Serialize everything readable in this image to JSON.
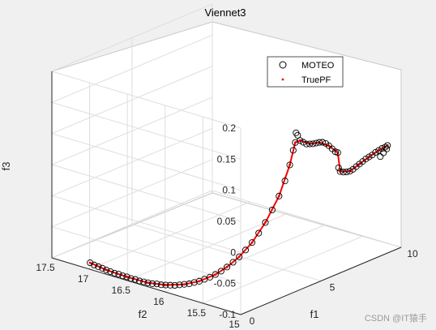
{
  "chart_data": {
    "type": "scatter",
    "title": "Viennet3",
    "xlabel": "f1",
    "ylabel": "f2",
    "zlabel": "f3",
    "xlim": [
      0,
      10
    ],
    "ylim": [
      15,
      17.5
    ],
    "zlim": [
      -0.1,
      0.2
    ],
    "x_ticks": [
      "0",
      "5",
      "10"
    ],
    "y_ticks": [
      "15",
      "15.5",
      "16",
      "16.5",
      "17",
      "17.5"
    ],
    "z_ticks": [
      "-0.1",
      "-0.05",
      "0",
      "0.05",
      "0.1",
      "0.15",
      "0.2"
    ],
    "grid": true,
    "legend": {
      "placement": "top-right",
      "entries": [
        {
          "name": "MOTEO",
          "marker": "circle-open",
          "color": "#000000"
        },
        {
          "name": "TruePF",
          "marker": "dot",
          "color": "#ff0000"
        }
      ]
    },
    "series": [
      {
        "name": "MOTEO",
        "points": [
          [
            0.03,
            17.0,
            -0.09
          ],
          [
            0.05,
            16.95,
            -0.092
          ],
          [
            0.07,
            16.9,
            -0.093
          ],
          [
            0.09,
            16.85,
            -0.094
          ],
          [
            0.1,
            16.8,
            -0.095
          ],
          [
            0.12,
            16.75,
            -0.096
          ],
          [
            0.14,
            16.7,
            -0.097
          ],
          [
            0.16,
            16.65,
            -0.097
          ],
          [
            0.18,
            16.6,
            -0.098
          ],
          [
            0.2,
            16.55,
            -0.098
          ],
          [
            0.22,
            16.5,
            -0.099
          ],
          [
            0.25,
            16.45,
            -0.099
          ],
          [
            0.28,
            16.4,
            -0.1
          ],
          [
            0.31,
            16.35,
            -0.1
          ],
          [
            0.34,
            16.3,
            -0.1
          ],
          [
            0.38,
            16.25,
            -0.1
          ],
          [
            0.42,
            16.2,
            -0.099
          ],
          [
            0.46,
            16.15,
            -0.099
          ],
          [
            0.5,
            16.1,
            -0.098
          ],
          [
            0.55,
            16.05,
            -0.097
          ],
          [
            0.6,
            16.0,
            -0.096
          ],
          [
            0.66,
            15.95,
            -0.094
          ],
          [
            0.72,
            15.9,
            -0.092
          ],
          [
            0.79,
            15.85,
            -0.09
          ],
          [
            0.87,
            15.8,
            -0.087
          ],
          [
            0.95,
            15.75,
            -0.084
          ],
          [
            1.04,
            15.7,
            -0.08
          ],
          [
            1.14,
            15.65,
            -0.076
          ],
          [
            1.25,
            15.6,
            -0.071
          ],
          [
            1.37,
            15.55,
            -0.065
          ],
          [
            1.5,
            15.5,
            -0.058
          ],
          [
            1.64,
            15.45,
            -0.05
          ],
          [
            1.79,
            15.4,
            -0.041
          ],
          [
            1.95,
            15.35,
            -0.03
          ],
          [
            2.12,
            15.3,
            -0.018
          ],
          [
            2.3,
            15.25,
            -0.003
          ],
          [
            2.48,
            15.2,
            0.014
          ],
          [
            2.67,
            15.15,
            0.034
          ],
          [
            2.86,
            15.1,
            0.056
          ],
          [
            3.04,
            15.06,
            0.08
          ],
          [
            3.2,
            15.03,
            0.105
          ],
          [
            3.32,
            15.01,
            0.128
          ],
          [
            3.4,
            15.0,
            0.14
          ],
          [
            3.45,
            15.0,
            0.155
          ],
          [
            3.55,
            15.0,
            0.15
          ],
          [
            3.7,
            15.0,
            0.14
          ],
          [
            3.9,
            15.0,
            0.135
          ],
          [
            4.1,
            15.0,
            0.13
          ],
          [
            4.3,
            15.0,
            0.128
          ],
          [
            4.5,
            15.0,
            0.126
          ],
          [
            4.7,
            15.0,
            0.125
          ],
          [
            4.9,
            15.0,
            0.124
          ],
          [
            5.1,
            15.0,
            0.122
          ],
          [
            5.3,
            15.0,
            0.118
          ],
          [
            5.5,
            15.0,
            0.112
          ],
          [
            5.7,
            15.0,
            0.105
          ],
          [
            5.9,
            15.0,
            0.098
          ],
          [
            6.05,
            15.0,
            0.095
          ],
          [
            6.1,
            15.0,
            0.07
          ],
          [
            6.2,
            15.0,
            0.063
          ],
          [
            6.4,
            15.0,
            0.06
          ],
          [
            6.6,
            15.0,
            0.058
          ],
          [
            6.8,
            15.0,
            0.057
          ],
          [
            7.0,
            15.0,
            0.058
          ],
          [
            7.2,
            15.0,
            0.06
          ],
          [
            7.4,
            15.0,
            0.062
          ],
          [
            7.6,
            15.0,
            0.064
          ],
          [
            7.8,
            15.0,
            0.066
          ],
          [
            8.0,
            15.0,
            0.067
          ],
          [
            8.2,
            15.0,
            0.068
          ],
          [
            8.4,
            15.0,
            0.07
          ],
          [
            8.6,
            15.0,
            0.071
          ],
          [
            8.8,
            15.0,
            0.072
          ],
          [
            9.0,
            15.0,
            0.072
          ],
          [
            9.15,
            15.0,
            0.073
          ],
          [
            8.7,
            15.0,
            0.06
          ],
          [
            8.9,
            15.0,
            0.064
          ],
          [
            9.1,
            15.0,
            0.068
          ]
        ]
      },
      {
        "name": "TruePF",
        "points": [
          [
            0.03,
            17.0,
            -0.09
          ],
          [
            0.1,
            16.8,
            -0.095
          ],
          [
            0.2,
            16.55,
            -0.098
          ],
          [
            0.34,
            16.3,
            -0.1
          ],
          [
            0.5,
            16.1,
            -0.098
          ],
          [
            0.72,
            15.9,
            -0.092
          ],
          [
            0.95,
            15.75,
            -0.084
          ],
          [
            1.25,
            15.6,
            -0.071
          ],
          [
            1.5,
            15.5,
            -0.058
          ],
          [
            1.79,
            15.4,
            -0.041
          ],
          [
            2.12,
            15.3,
            -0.018
          ],
          [
            2.48,
            15.2,
            0.014
          ],
          [
            2.86,
            15.1,
            0.056
          ],
          [
            3.2,
            15.03,
            0.105
          ],
          [
            3.4,
            15.0,
            0.14
          ],
          [
            3.7,
            15.0,
            0.14
          ],
          [
            4.3,
            15.0,
            0.128
          ],
          [
            4.9,
            15.0,
            0.124
          ],
          [
            5.5,
            15.0,
            0.112
          ],
          [
            6.05,
            15.0,
            0.095
          ],
          [
            6.2,
            15.0,
            0.063
          ],
          [
            6.8,
            15.0,
            0.057
          ],
          [
            7.4,
            15.0,
            0.062
          ],
          [
            8.0,
            15.0,
            0.067
          ],
          [
            8.6,
            15.0,
            0.071
          ],
          [
            9.15,
            15.0,
            0.073
          ]
        ]
      }
    ]
  },
  "watermark": "CSDN @IT猿手"
}
